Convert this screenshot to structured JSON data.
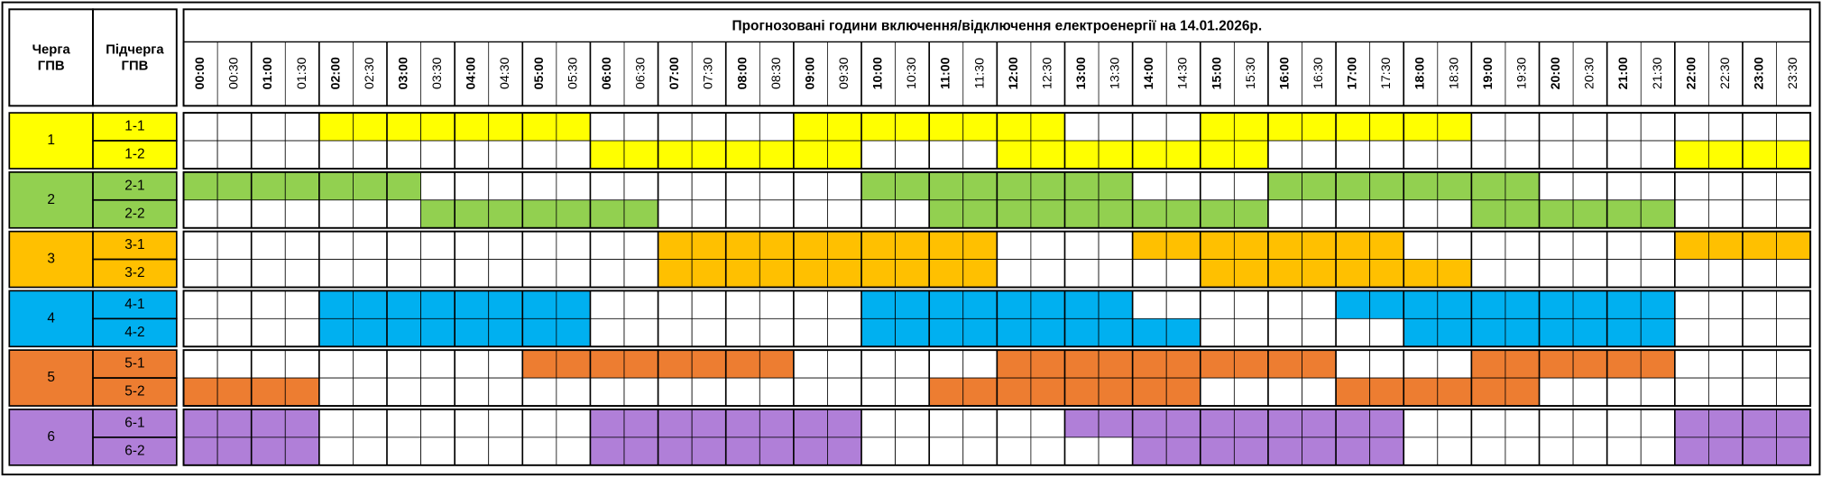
{
  "header": {
    "title": "Прогнозовані години включення/відключення електроенергії на 14.01.2026р.",
    "queue": [
      "Черга",
      "ГПВ"
    ],
    "subqueue": [
      "Підчерга",
      "ГПВ"
    ],
    "times": [
      "00:00",
      "00:30",
      "01:00",
      "01:30",
      "02:00",
      "02:30",
      "03:00",
      "03:30",
      "04:00",
      "04:30",
      "05:00",
      "05:30",
      "06:00",
      "06:30",
      "07:00",
      "07:30",
      "08:00",
      "08:30",
      "09:00",
      "09:30",
      "10:00",
      "10:30",
      "11:00",
      "11:30",
      "12:00",
      "12:30",
      "13:00",
      "13:30",
      "14:00",
      "14:30",
      "15:00",
      "15:30",
      "16:00",
      "16:30",
      "17:00",
      "17:30",
      "18:00",
      "18:30",
      "19:00",
      "19:30",
      "20:00",
      "20:30",
      "21:00",
      "21:30",
      "22:00",
      "22:30",
      "23:00",
      "23:30"
    ]
  },
  "groups": [
    {
      "label": "1",
      "color": "#ffff00",
      "subgroups": [
        {
          "label": "1-1",
          "slots": [
            0,
            0,
            0,
            0,
            1,
            1,
            1,
            1,
            1,
            1,
            1,
            1,
            0,
            0,
            0,
            0,
            0,
            0,
            1,
            1,
            1,
            1,
            1,
            1,
            1,
            1,
            0,
            0,
            0,
            0,
            1,
            1,
            1,
            1,
            1,
            1,
            1,
            1,
            0,
            0,
            0,
            0,
            0,
            0,
            0,
            0,
            0,
            0
          ]
        },
        {
          "label": "1-2",
          "slots": [
            0,
            0,
            0,
            0,
            0,
            0,
            0,
            0,
            0,
            0,
            0,
            0,
            1,
            1,
            1,
            1,
            1,
            1,
            1,
            1,
            0,
            0,
            0,
            0,
            1,
            1,
            1,
            1,
            1,
            1,
            1,
            1,
            0,
            0,
            0,
            0,
            0,
            0,
            0,
            0,
            0,
            0,
            0,
            0,
            1,
            1,
            1,
            1
          ]
        }
      ]
    },
    {
      "label": "2",
      "color": "#92d050",
      "subgroups": [
        {
          "label": "2-1",
          "slots": [
            1,
            1,
            1,
            1,
            1,
            1,
            1,
            0,
            0,
            0,
            0,
            0,
            0,
            0,
            0,
            0,
            0,
            0,
            0,
            0,
            1,
            1,
            1,
            1,
            1,
            1,
            1,
            1,
            0,
            0,
            0,
            0,
            1,
            1,
            1,
            1,
            1,
            1,
            1,
            1,
            0,
            0,
            0,
            0,
            0,
            0,
            0,
            0
          ]
        },
        {
          "label": "2-2",
          "slots": [
            0,
            0,
            0,
            0,
            0,
            0,
            0,
            1,
            1,
            1,
            1,
            1,
            1,
            1,
            0,
            0,
            0,
            0,
            0,
            0,
            0,
            0,
            1,
            1,
            1,
            1,
            1,
            1,
            1,
            1,
            1,
            1,
            0,
            0,
            0,
            0,
            0,
            0,
            1,
            1,
            1,
            1,
            1,
            1,
            0,
            0,
            0,
            0
          ]
        }
      ]
    },
    {
      "label": "3",
      "color": "#ffc000",
      "subgroups": [
        {
          "label": "3-1",
          "slots": [
            0,
            0,
            0,
            0,
            0,
            0,
            0,
            0,
            0,
            0,
            0,
            0,
            0,
            0,
            1,
            1,
            1,
            1,
            1,
            1,
            1,
            1,
            1,
            1,
            0,
            0,
            0,
            0,
            1,
            1,
            1,
            1,
            1,
            1,
            1,
            1,
            0,
            0,
            0,
            0,
            0,
            0,
            0,
            0,
            1,
            1,
            1,
            1
          ]
        },
        {
          "label": "3-2",
          "slots": [
            0,
            0,
            0,
            0,
            0,
            0,
            0,
            0,
            0,
            0,
            0,
            0,
            0,
            0,
            1,
            1,
            1,
            1,
            1,
            1,
            1,
            1,
            1,
            1,
            0,
            0,
            0,
            0,
            0,
            0,
            1,
            1,
            1,
            1,
            1,
            1,
            1,
            1,
            0,
            0,
            0,
            0,
            0,
            0,
            0,
            0,
            0,
            0
          ]
        }
      ]
    },
    {
      "label": "4",
      "color": "#00b0f0",
      "subgroups": [
        {
          "label": "4-1",
          "slots": [
            0,
            0,
            0,
            0,
            1,
            1,
            1,
            1,
            1,
            1,
            1,
            1,
            0,
            0,
            0,
            0,
            0,
            0,
            0,
            0,
            1,
            1,
            1,
            1,
            1,
            1,
            1,
            1,
            0,
            0,
            0,
            0,
            0,
            0,
            1,
            1,
            1,
            1,
            1,
            1,
            1,
            1,
            1,
            1,
            0,
            0,
            0,
            0
          ]
        },
        {
          "label": "4-2",
          "slots": [
            0,
            0,
            0,
            0,
            1,
            1,
            1,
            1,
            1,
            1,
            1,
            1,
            0,
            0,
            0,
            0,
            0,
            0,
            0,
            0,
            1,
            1,
            1,
            1,
            1,
            1,
            1,
            1,
            1,
            1,
            0,
            0,
            0,
            0,
            0,
            0,
            1,
            1,
            1,
            1,
            1,
            1,
            1,
            1,
            0,
            0,
            0,
            0
          ]
        }
      ]
    },
    {
      "label": "5",
      "color": "#ed7d31",
      "subgroups": [
        {
          "label": "5-1",
          "slots": [
            0,
            0,
            0,
            0,
            0,
            0,
            0,
            0,
            0,
            0,
            1,
            1,
            1,
            1,
            1,
            1,
            1,
            1,
            0,
            0,
            0,
            0,
            0,
            0,
            1,
            1,
            1,
            1,
            1,
            1,
            1,
            1,
            1,
            1,
            0,
            0,
            0,
            0,
            1,
            1,
            1,
            1,
            1,
            1,
            0,
            0,
            0,
            0
          ]
        },
        {
          "label": "5-2",
          "slots": [
            1,
            1,
            1,
            1,
            0,
            0,
            0,
            0,
            0,
            0,
            0,
            0,
            0,
            0,
            0,
            0,
            0,
            0,
            0,
            0,
            0,
            0,
            1,
            1,
            1,
            1,
            1,
            1,
            1,
            1,
            0,
            0,
            0,
            0,
            1,
            1,
            1,
            1,
            1,
            1,
            0,
            0,
            0,
            0,
            0,
            0,
            0,
            0
          ]
        }
      ]
    },
    {
      "label": "6",
      "color": "#b07fd8",
      "subgroups": [
        {
          "label": "6-1",
          "slots": [
            1,
            1,
            1,
            1,
            0,
            0,
            0,
            0,
            0,
            0,
            0,
            0,
            1,
            1,
            1,
            1,
            1,
            1,
            1,
            1,
            0,
            0,
            0,
            0,
            0,
            0,
            1,
            1,
            1,
            1,
            1,
            1,
            1,
            1,
            1,
            1,
            0,
            0,
            0,
            0,
            0,
            0,
            0,
            0,
            1,
            1,
            1,
            1
          ]
        },
        {
          "label": "6-2",
          "slots": [
            1,
            1,
            1,
            1,
            0,
            0,
            0,
            0,
            0,
            0,
            0,
            0,
            1,
            1,
            1,
            1,
            1,
            1,
            1,
            1,
            0,
            0,
            0,
            0,
            0,
            0,
            0,
            0,
            1,
            1,
            1,
            1,
            1,
            1,
            1,
            1,
            0,
            0,
            0,
            0,
            0,
            0,
            0,
            0,
            1,
            1,
            1,
            1
          ]
        }
      ]
    }
  ]
}
